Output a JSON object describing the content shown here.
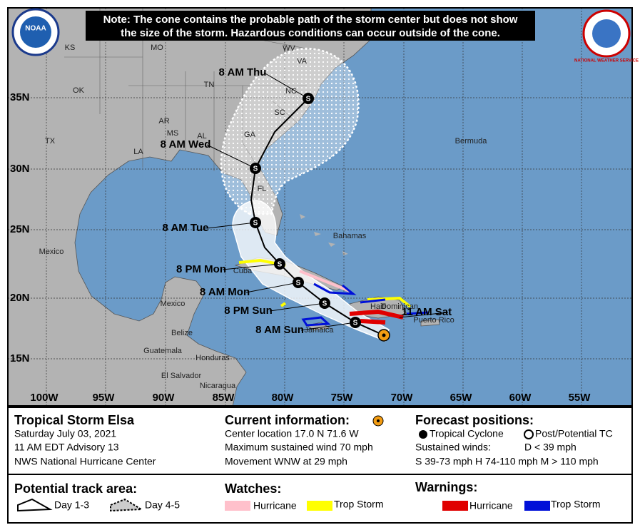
{
  "note": [
    "Note: The cone contains the probable path of the storm center but does not show",
    "the size of the storm. Hazardous conditions can occur outside of the cone."
  ],
  "logos": [
    "NOAA",
    "NATIONAL WEATHER SERVICE"
  ],
  "map_labels": [
    "KS",
    "MO",
    "WV",
    "VA",
    "OK",
    "TN",
    "NC",
    "SC",
    "AR",
    "MS",
    "AL",
    "GA",
    "TX",
    "LA",
    "FL",
    "Bermuda",
    "Bahamas",
    "Mexico",
    "Cuba",
    "Mexico",
    "Haiti",
    "Dominican",
    "Jamaica",
    "Puerto Rico",
    "Belize",
    "Guatemala",
    "Honduras",
    "El Salvador",
    "Nicaragua"
  ],
  "latitudes": [
    "35N",
    "30N",
    "25N",
    "20N",
    "15N"
  ],
  "longitudes": [
    "100W",
    "95W",
    "90W",
    "85W",
    "80W",
    "75W",
    "70W",
    "65W",
    "60W",
    "55W"
  ],
  "forecast_labels": [
    "11 AM Sat",
    "8 AM Sun",
    "8 PM Sun",
    "8 AM Mon",
    "8 PM Mon",
    "8 AM Tue",
    "8 AM Wed",
    "8 AM Thu"
  ],
  "point_symbol": "S",
  "info": {
    "storm": "Tropical Storm Elsa",
    "date": "Saturday July 03, 2021",
    "advisory": "11 AM EDT Advisory 13",
    "center": "NWS National Hurricane Center",
    "current_title": "Current information:",
    "location": "Center location 17.0 N 71.6 W",
    "wind": "Maximum sustained wind 70 mph",
    "movement": "Movement WNW at 29 mph",
    "forecast_title": "Forecast positions:",
    "tc": "Tropical Cyclone",
    "post": "Post/Potential TC",
    "sustained": "Sustained winds:",
    "d": "D < 39 mph",
    "scale": "S 39-73 mph  H 74-110 mph  M > 110 mph"
  },
  "legend": {
    "track_title": "Potential track area:",
    "day13": "Day 1-3",
    "day45": "Day 4-5",
    "watches_title": "Watches:",
    "watch_hurricane": "Hurricane",
    "watch_ts": "Trop Storm",
    "warnings_title": "Warnings:",
    "warn_hurricane": "Hurricane",
    "warn_ts": "Trop Storm"
  }
}
